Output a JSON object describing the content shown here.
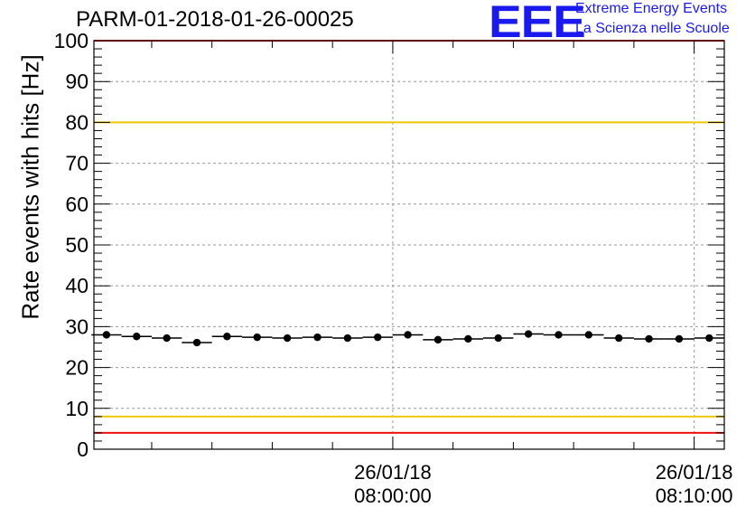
{
  "chart_data": {
    "type": "scatter",
    "title": "PARM-01-2018-01-26-00025",
    "ylabel": "Rate events with hits [Hz]",
    "xlabel": "",
    "ylim": [
      0,
      100
    ],
    "yticks": [
      0,
      10,
      20,
      30,
      40,
      50,
      60,
      70,
      80,
      90,
      100
    ],
    "x_axis_type": "time",
    "xlim": [
      "2018-01-26 07:50:05",
      "2018-01-26 08:11:00"
    ],
    "xticks": [
      {
        "time": "2018-01-26 08:00:00",
        "date": "26/01/18",
        "clock": "08:00:00"
      },
      {
        "time": "2018-01-26 08:10:00",
        "date": "26/01/18",
        "clock": "08:10:00"
      }
    ],
    "grid": true,
    "reference_lines": [
      {
        "y": 100,
        "color": "#ee1111"
      },
      {
        "y": 80,
        "color": "#f0c800"
      },
      {
        "y": 8,
        "color": "#f0c800"
      },
      {
        "y": 4,
        "color": "#ee1111"
      }
    ],
    "series": [
      {
        "color": "#000000",
        "x": [
          "07:50:30",
          "07:51:30",
          "07:52:30",
          "07:53:30",
          "07:54:30",
          "07:55:30",
          "07:56:30",
          "07:57:30",
          "07:58:30",
          "07:59:30",
          "08:00:30",
          "08:01:30",
          "08:02:30",
          "08:03:30",
          "08:04:30",
          "08:05:30",
          "08:06:30",
          "08:07:30",
          "08:08:30",
          "08:09:30",
          "08:10:30"
        ],
        "y": [
          28.0,
          27.6,
          27.2,
          26.1,
          27.6,
          27.4,
          27.2,
          27.4,
          27.2,
          27.4,
          28.0,
          26.8,
          27.0,
          27.2,
          28.2,
          28.0,
          28.0,
          27.2,
          27.0,
          27.0,
          27.2
        ],
        "x_half_width_seconds": 30
      }
    ]
  },
  "logo": {
    "mark": "EEE",
    "line1": "Extreme Energy Events",
    "line2": "La Scienza nelle Scuole"
  }
}
